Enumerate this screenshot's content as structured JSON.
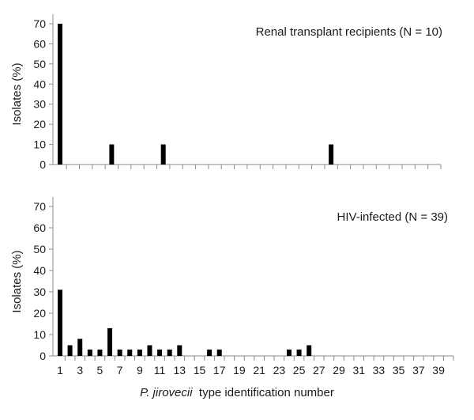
{
  "xlabel_italic": "P. jirovecii",
  "xlabel_rest": "type identification number",
  "chart_data": [
    {
      "type": "bar",
      "title": "Renal transplant recipients (N = 10)",
      "ylabel": "Isolates (%)",
      "ylim": [
        0,
        70
      ],
      "yticks": [
        0,
        10,
        20,
        30,
        40,
        50,
        60,
        70
      ],
      "x": [
        1,
        5,
        9,
        22
      ],
      "values": [
        70,
        10,
        10,
        10
      ],
      "x_range": [
        1,
        39
      ],
      "x_ticklabels_shown": false,
      "bar_color": "#000000"
    },
    {
      "type": "bar",
      "title": "HIV-infected (N = 39)",
      "ylabel": "Isolates (%)",
      "ylim": [
        0,
        70
      ],
      "yticks": [
        0,
        10,
        20,
        30,
        40,
        50,
        60,
        70
      ],
      "x": [
        1,
        2,
        3,
        4,
        5,
        6,
        7,
        8,
        9,
        10,
        11,
        12,
        13,
        16,
        17,
        24,
        25,
        26
      ],
      "values": [
        31,
        5,
        8,
        3,
        3,
        13,
        3,
        3,
        3,
        5,
        3,
        3,
        5,
        3,
        3,
        3,
        3,
        5
      ],
      "x_range": [
        1,
        39
      ],
      "x_ticklabels": [
        "1",
        "3",
        "5",
        "7",
        "9",
        "11",
        "13",
        "15",
        "17",
        "19",
        "21",
        "23",
        "25",
        "27",
        "29",
        "31",
        "33",
        "35",
        "37",
        "39"
      ],
      "x_ticklabels_shown": true,
      "bar_color": "#000000"
    }
  ]
}
